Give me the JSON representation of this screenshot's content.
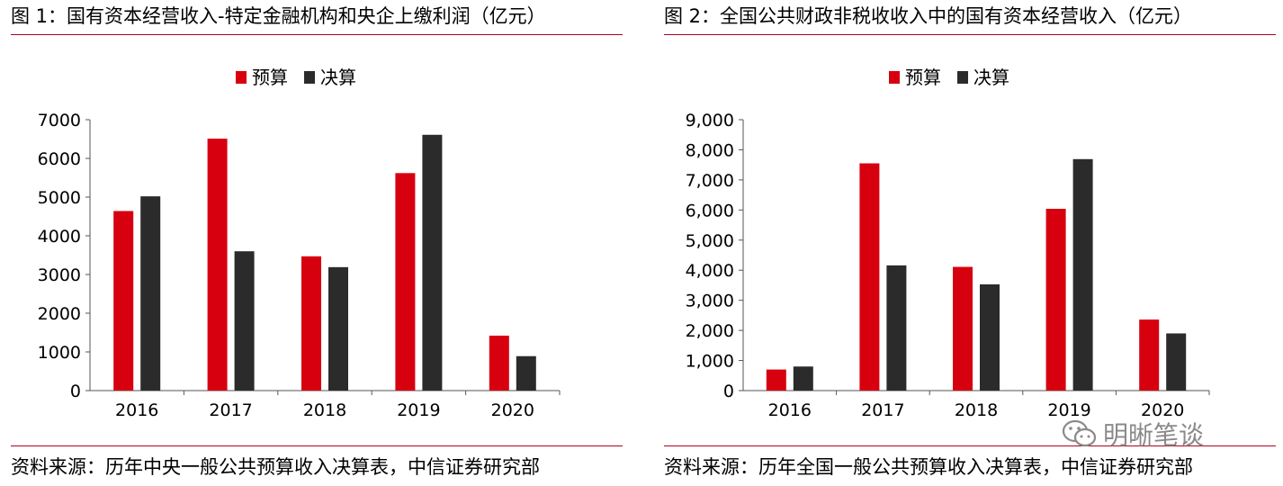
{
  "figures": [
    {
      "title": "图 1：国有资本经营收入-特定金融机构和央企上缴利润（亿元）",
      "source": "资料来源：历年中央一般公共预算收入决算表，中信证券研究部"
    },
    {
      "title": "图 2：全国公共财政非税收收入中的国有资本经营收入（亿元）",
      "source": "资料来源：历年全国一般公共预算收入决算表，中信证券研究部"
    }
  ],
  "watermark": {
    "text": "明晰笔谈",
    "icon": "wechat-icon"
  },
  "colors": {
    "budget": "#d7000f",
    "final": "#2b2b2b",
    "rule": "#b00020"
  },
  "chart_data": [
    {
      "type": "bar",
      "categories": [
        "2016",
        "2017",
        "2018",
        "2019",
        "2020"
      ],
      "series": [
        {
          "name": "预算",
          "values": [
            4640,
            6510,
            3470,
            5620,
            1420
          ]
        },
        {
          "name": "决算",
          "values": [
            5020,
            3600,
            3190,
            6610,
            890
          ]
        }
      ],
      "ylim": [
        0,
        7000
      ],
      "yticks": [
        0,
        1000,
        2000,
        3000,
        4000,
        5000,
        6000,
        7000
      ],
      "ytick_labels": [
        "0",
        "1000",
        "2000",
        "3000",
        "4000",
        "5000",
        "6000",
        "7000"
      ],
      "legend_position": "top-center",
      "grid": false
    },
    {
      "type": "bar",
      "categories": [
        "2016",
        "2017",
        "2018",
        "2019",
        "2020"
      ],
      "series": [
        {
          "name": "预算",
          "values": [
            700,
            7550,
            4110,
            6040,
            2360
          ]
        },
        {
          "name": "决算",
          "values": [
            800,
            4160,
            3530,
            7690,
            1900
          ]
        }
      ],
      "ylim": [
        0,
        9000
      ],
      "yticks": [
        0,
        1000,
        2000,
        3000,
        4000,
        5000,
        6000,
        7000,
        8000,
        9000
      ],
      "ytick_labels": [
        "0",
        "1,000",
        "2,000",
        "3,000",
        "4,000",
        "5,000",
        "6,000",
        "7,000",
        "8,000",
        "9,000"
      ],
      "legend_position": "top-center",
      "grid": false
    }
  ]
}
